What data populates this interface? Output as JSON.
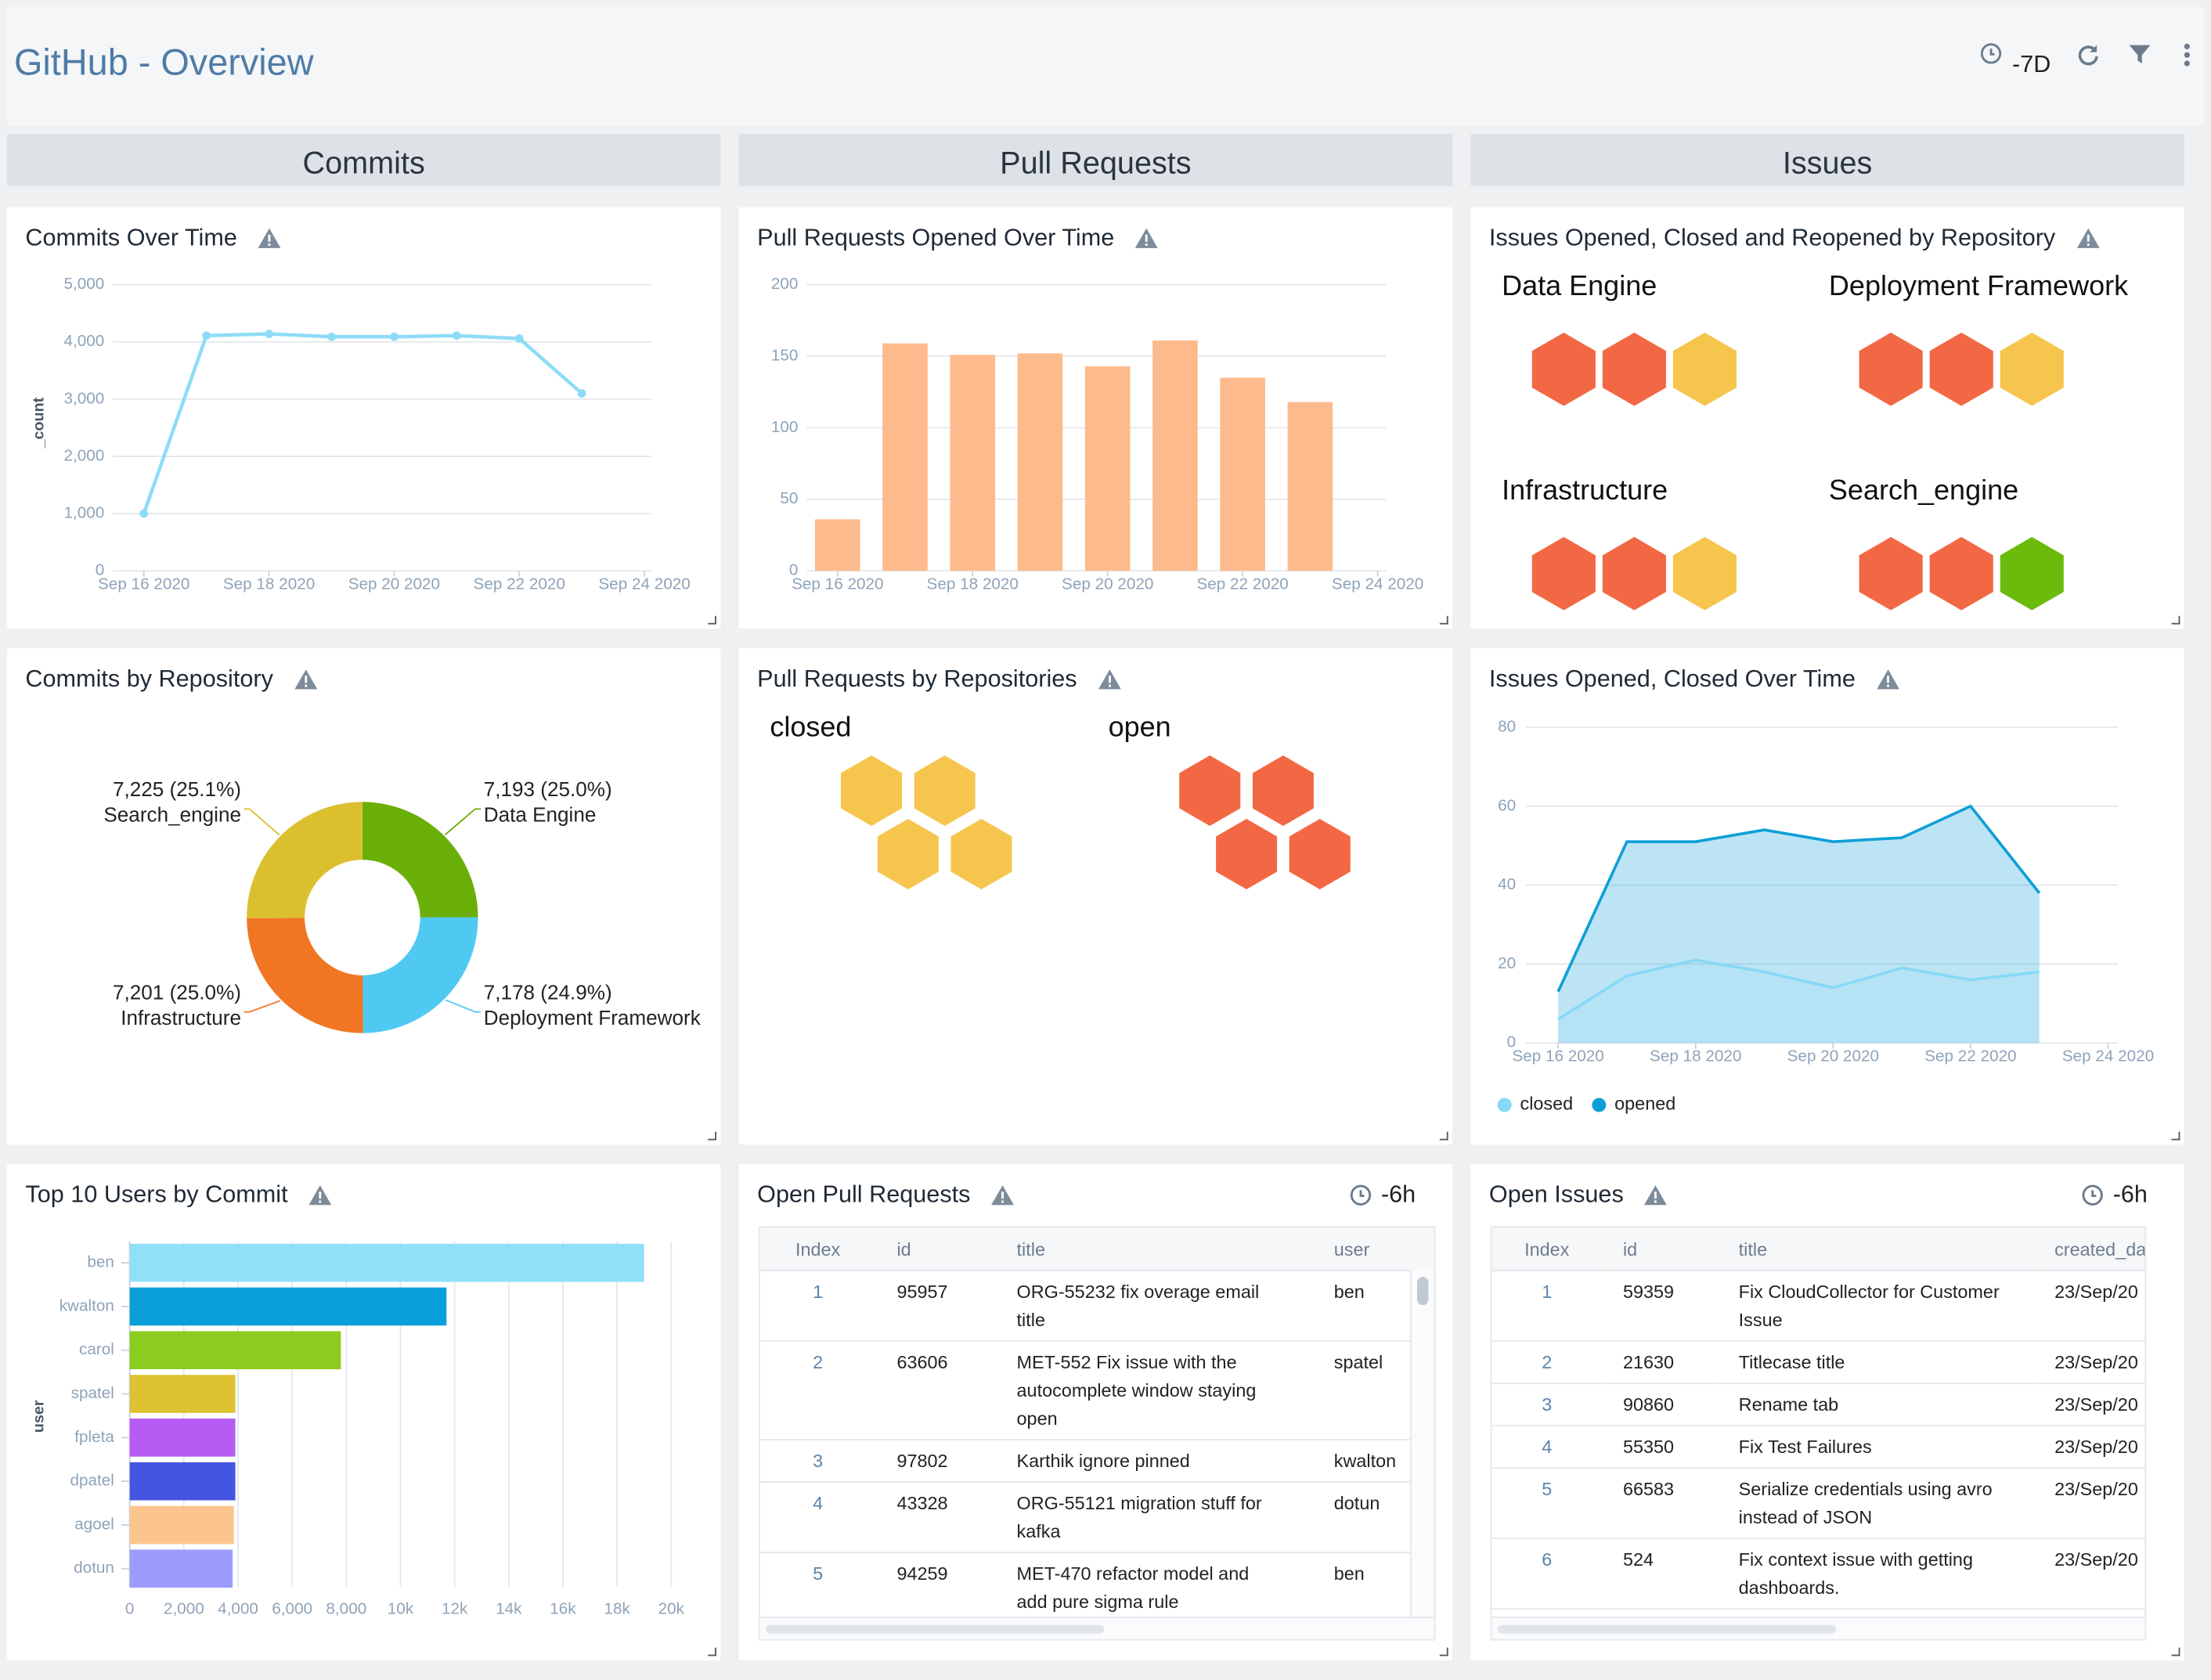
{
  "header": {
    "title": "GitHub - Overview",
    "time_range": "-7D"
  },
  "sections": [
    "Commits",
    "Pull Requests",
    "Issues"
  ],
  "chart_data": [
    {
      "type": "line",
      "title": "Commits Over Time",
      "ylabel": "_count",
      "x": [
        "2020-09-16",
        "2020-09-17",
        "2020-09-18",
        "2020-09-19",
        "2020-09-20",
        "2020-09-21",
        "2020-09-22",
        "2020-09-23"
      ],
      "values": [
        1000,
        4110,
        4140,
        4090,
        4090,
        4110,
        4060,
        3100
      ],
      "color": "#8ddcf7",
      "xlim": [
        "2020-09-16",
        "2020-09-24"
      ],
      "xticks": [
        {
          "value": "2020-09-16",
          "label": "Sep 16 2020"
        },
        {
          "value": "2020-09-18",
          "label": "Sep 18 2020"
        },
        {
          "value": "2020-09-20",
          "label": "Sep 20 2020"
        },
        {
          "value": "2020-09-22",
          "label": "Sep 22 2020"
        },
        {
          "value": "2020-09-24",
          "label": "Sep 24 2020"
        }
      ],
      "ylim": [
        0,
        5000
      ],
      "yticks": [
        0,
        {
          "value": 1000,
          "label": "1,000"
        },
        {
          "value": 2000,
          "label": "2,000"
        },
        {
          "value": 3000,
          "label": "3,000"
        },
        {
          "value": 4000,
          "label": "4,000"
        },
        {
          "value": 5000,
          "label": "5,000"
        }
      ],
      "grid": true
    },
    {
      "type": "bar",
      "title": "Pull Requests Opened Over Time",
      "x": [
        "2020-09-16",
        "2020-09-17",
        "2020-09-18",
        "2020-09-19",
        "2020-09-20",
        "2020-09-21",
        "2020-09-22",
        "2020-09-23"
      ],
      "values": [
        36,
        159,
        151,
        152,
        143,
        161,
        135,
        118
      ],
      "color": "#fdbb8d",
      "xlim": [
        "2020-09-16",
        "2020-09-24"
      ],
      "xticks": [
        {
          "value": "2020-09-16",
          "label": "Sep 16 2020"
        },
        {
          "value": "2020-09-18",
          "label": "Sep 18 2020"
        },
        {
          "value": "2020-09-20",
          "label": "Sep 20 2020"
        },
        {
          "value": "2020-09-22",
          "label": "Sep 22 2020"
        },
        {
          "value": "2020-09-24",
          "label": "Sep 24 2020"
        }
      ],
      "ylim": [
        0,
        200
      ],
      "yticks": [
        0,
        50,
        100,
        150,
        200
      ],
      "grid": true
    },
    {
      "type": "donut",
      "title": "Commits by Repository",
      "categories": [
        "Data Engine",
        "Deployment Framework",
        "Infrastructure",
        "Search_engine"
      ],
      "values": [
        7193,
        7178,
        7201,
        7225
      ],
      "value_labels": [
        "7,193 (25.0%)",
        "7,178 (24.9%)",
        "7,201 (25.0%)",
        "7,225 (25.1%)"
      ],
      "colors": [
        "#6aaf08",
        "#4fc9f2",
        "#f07623",
        "#dcbf2e"
      ]
    },
    {
      "type": "area",
      "title": "Issues Opened, Closed Over Time",
      "x": [
        "2020-09-16",
        "2020-09-17",
        "2020-09-18",
        "2020-09-19",
        "2020-09-20",
        "2020-09-21",
        "2020-09-22",
        "2020-09-23"
      ],
      "series": [
        {
          "name": "closed",
          "color": "#86d9f7",
          "values": [
            6,
            17,
            21,
            18,
            14,
            19,
            16,
            18
          ]
        },
        {
          "name": "opened",
          "color": "#0e9fd6",
          "values": [
            13,
            51,
            51,
            54,
            51,
            52,
            60,
            38
          ]
        }
      ],
      "xlim": [
        "2020-09-16",
        "2020-09-24"
      ],
      "xticks": [
        {
          "value": "2020-09-16",
          "label": "Sep 16 2020"
        },
        {
          "value": "2020-09-18",
          "label": "Sep 18 2020"
        },
        {
          "value": "2020-09-20",
          "label": "Sep 20 2020"
        },
        {
          "value": "2020-09-22",
          "label": "Sep 22 2020"
        },
        {
          "value": "2020-09-24",
          "label": "Sep 24 2020"
        }
      ],
      "ylim": [
        0,
        80
      ],
      "yticks": [
        0,
        20,
        40,
        60,
        80
      ],
      "grid": true,
      "legend": "bottom"
    },
    {
      "type": "hbar",
      "title": "Top 10 Users by Commit",
      "ylabel": "user",
      "categories": [
        "ben",
        "kwalton",
        "carol",
        "spatel",
        "fpleta",
        "dpatel",
        "agoel",
        "dotun"
      ],
      "values": [
        19000,
        11700,
        7800,
        3900,
        3900,
        3900,
        3850,
        3800
      ],
      "colors": [
        "#8fe0f8",
        "#0a9fd8",
        "#8ccc1f",
        "#dfc232",
        "#b65cf5",
        "#4456e0",
        "#fdc58e",
        "#9c9cfd"
      ],
      "xlim": [
        0,
        20000
      ],
      "xticks": [
        0,
        {
          "value": 2000,
          "label": "2,000"
        },
        {
          "value": 4000,
          "label": "4,000"
        },
        {
          "value": 6000,
          "label": "6,000"
        },
        {
          "value": 8000,
          "label": "8,000"
        },
        {
          "value": 10000,
          "label": "10k"
        },
        {
          "value": 12000,
          "label": "12k"
        },
        {
          "value": 14000,
          "label": "14k"
        },
        {
          "value": 16000,
          "label": "16k"
        },
        {
          "value": 18000,
          "label": "18k"
        },
        {
          "value": 20000,
          "label": "20k"
        }
      ],
      "grid": true
    }
  ],
  "honeycombs": [
    {
      "title": "Issues Opened, Closed and Reopened by Repository",
      "groups": [
        {
          "name": "Data Engine",
          "colors": [
            "#f26844",
            "#f26844",
            "#f5c54d"
          ]
        },
        {
          "name": "Deployment Framework",
          "colors": [
            "#f26844",
            "#f26844",
            "#f5c54d"
          ]
        },
        {
          "name": "Infrastructure",
          "colors": [
            "#f26844",
            "#f26844",
            "#f5c54d"
          ]
        },
        {
          "name": "Search_engine",
          "colors": [
            "#f26844",
            "#f26844",
            "#6abb0b"
          ]
        }
      ]
    },
    {
      "title": "Pull Requests by Repositories",
      "groups": [
        {
          "name": "closed",
          "colors": [
            "#f5c54d",
            "#f5c54d",
            "#f5c54d",
            "#f5c54d"
          ]
        },
        {
          "name": "open",
          "colors": [
            "#f26844",
            "#f26844",
            "#f26844",
            "#f26844"
          ]
        }
      ]
    }
  ],
  "tables": [
    {
      "title": "Open Pull Requests",
      "time_range": "-6h",
      "columns": [
        "Index",
        "id",
        "title",
        "user"
      ],
      "rows": [
        [
          1,
          95957,
          "ORG-55232 fix overage email title",
          "ben"
        ],
        [
          2,
          63606,
          "MET-552 Fix issue with the autocomplete window staying open",
          "spatel"
        ],
        [
          3,
          97802,
          "Karthik ignore pinned",
          "kwalton"
        ],
        [
          4,
          43328,
          "ORG-55121 migration stuff for kafka",
          "dotun"
        ],
        [
          5,
          94259,
          "MET-470 refactor model and add pure sigma rule",
          "ben"
        ]
      ]
    },
    {
      "title": "Open Issues",
      "time_range": "-6h",
      "columns": [
        "Index",
        "id",
        "title",
        "created_date"
      ],
      "rows": [
        [
          1,
          59359,
          "Fix CloudCollector for Customer Issue",
          "23/Sep/20"
        ],
        [
          2,
          21630,
          "Titlecase title",
          "23/Sep/20"
        ],
        [
          3,
          90860,
          "Rename tab",
          "23/Sep/20"
        ],
        [
          4,
          55350,
          "Fix Test Failures",
          "23/Sep/20"
        ],
        [
          5,
          66583,
          "Serialize credentials using avro instead of JSON",
          "23/Sep/20"
        ],
        [
          6,
          524,
          "Fix context issue with getting dashboards.",
          "23/Sep/20"
        ]
      ]
    }
  ]
}
